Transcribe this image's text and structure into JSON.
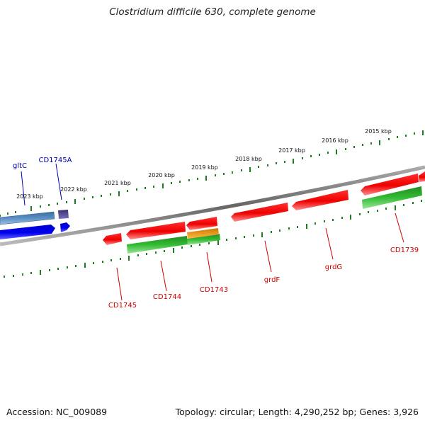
{
  "title": "Clostridium difficile 630, complete genome",
  "footer": {
    "accession": "Accession: NC_009089",
    "summary": "Topology: circular; Length: 4,290,252 bp; Genes: 3,926"
  },
  "kbp_labels": [
    "2015 kbp",
    "2016 kbp",
    "2017 kbp",
    "2018 kbp",
    "2019 kbp",
    "2020 kbp",
    "2021 kbp",
    "2022 kbp",
    "2023 kbp"
  ],
  "colors": {
    "background": "#ffffff",
    "backbone": "#808080",
    "ticks": "#1e7d1e",
    "forward_gene": "#0000ee",
    "forward_gene_alt": "#4a7fb5",
    "forward_label": "#0000aa",
    "reverse_gene": "#ee0000",
    "reverse_label": "#cc0000",
    "green_feature": "#33bb33",
    "orange_feature": "#ee9900",
    "purple_feature": "#4b3f8f"
  },
  "forward_genes": [
    {
      "label": "gltC"
    },
    {
      "label": "CD1745A"
    }
  ],
  "reverse_genes": [
    {
      "label": "CD1745"
    },
    {
      "label": "CD1744"
    },
    {
      "label": "CD1743"
    },
    {
      "label": "grdF"
    },
    {
      "label": "grdG"
    },
    {
      "label": "CD1739"
    }
  ]
}
